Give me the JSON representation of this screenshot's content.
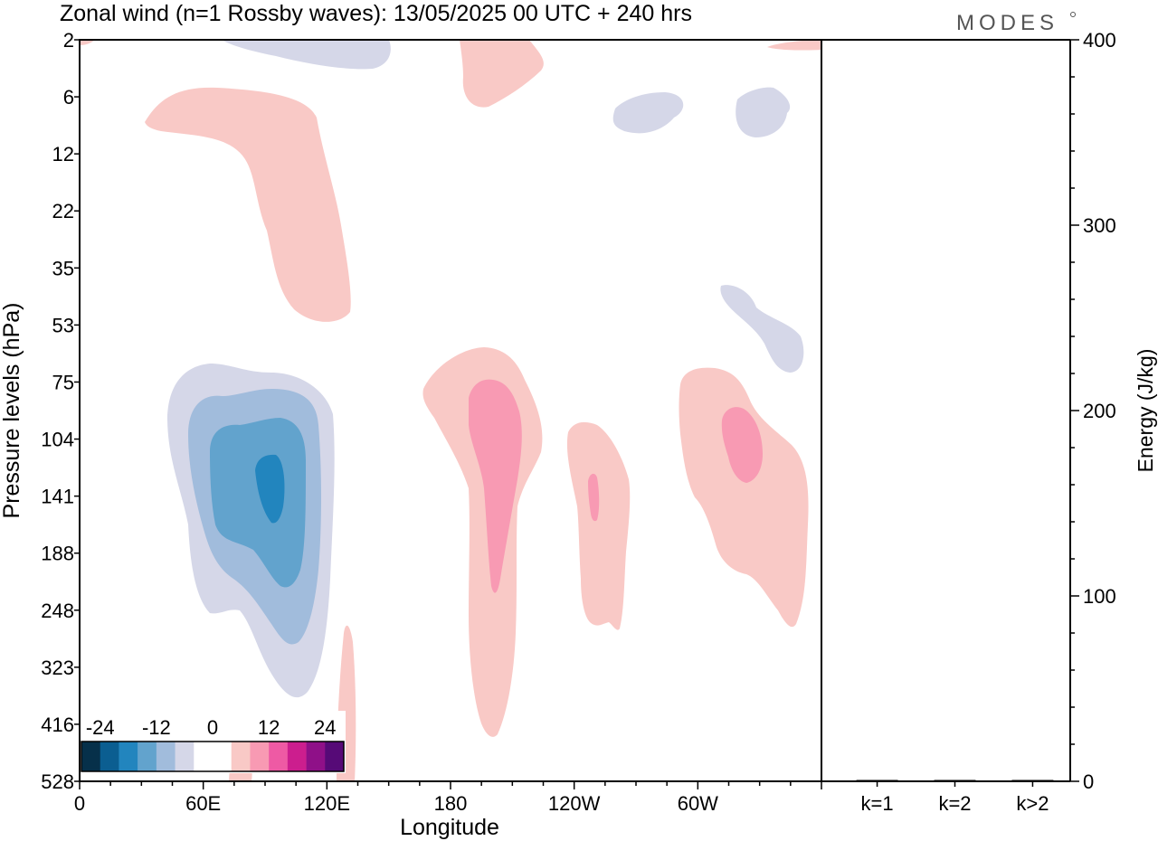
{
  "title": "Zonal wind (n=1 Rossby waves):  13/05/2025  00 UTC  + 240 hrs",
  "logo_text": "MODES",
  "chart_data": [
    {
      "type": "heatmap",
      "title": "Zonal wind (n=1 Rossby waves):  13/05/2025  00 UTC  + 240 hrs",
      "xlabel": "Longitude",
      "ylabel": "Pressure levels (hPa)",
      "x_ticks": [
        "0",
        "60E",
        "120E",
        "180",
        "120W",
        "60W"
      ],
      "x_tick_degrees": [
        0,
        60,
        120,
        180,
        240,
        300
      ],
      "xlim": [
        0,
        360
      ],
      "y_ticks": [
        "2",
        "6",
        "12",
        "22",
        "35",
        "53",
        "75",
        "104",
        "141",
        "188",
        "248",
        "323",
        "416",
        "528"
      ],
      "colorbar": {
        "tick_labels": [
          "-24",
          "-12",
          "0",
          "12",
          "24"
        ],
        "colors": [
          "#06304a",
          "#0b5e91",
          "#2285be",
          "#62a3cd",
          "#a1bcdc",
          "#d5d7e8",
          "#ffffff",
          "#ffffff",
          "#f9c9c6",
          "#f89ab3",
          "#ee5aa4",
          "#cc1e8e",
          "#8f1088",
          "#560a77"
        ]
      },
      "contours": [
        {
          "level": "negative",
          "color": "#d5d7e8",
          "region": "60E-120E, 75-416 hPa"
        },
        {
          "level": "negative",
          "color": "#a1bcdc",
          "region": "70E-115E, 85-323 hPa"
        },
        {
          "level": "negative",
          "color": "#62a3cd",
          "region": "80E-110E, 100-248 hPa"
        },
        {
          "level": "negative",
          "color": "#2285be",
          "region": "~90E, 115-175 hPa"
        },
        {
          "level": "positive",
          "color": "#f9c9c6",
          "region": "170E-160W, 70-416 hPa"
        },
        {
          "level": "positive",
          "color": "#f89ab3",
          "region": "~195E, 80-220 hPa"
        },
        {
          "level": "positive",
          "color": "#f9c9c6",
          "region": "125W-105W, 110-270 hPa"
        },
        {
          "level": "positive",
          "color": "#f9c9c6",
          "region": "75W-15W, 75-260 hPa"
        },
        {
          "level": "positive",
          "color": "#f89ab3",
          "region": "~45W, 105-150 hPa"
        },
        {
          "level": "positive",
          "color": "#f9c9c6",
          "region": "30E-130E, 5-53 hPa"
        },
        {
          "level": "negative",
          "color": "#d5d7e8",
          "region": "100W-50W, 2-12 hPa"
        }
      ]
    },
    {
      "type": "bar",
      "ylabel": "Energy (J/kg)",
      "categories": [
        "k=1",
        "k=2",
        "k>2"
      ],
      "values": [
        0.5,
        0.2,
        0.4
      ],
      "ylim": [
        0,
        400
      ],
      "y_ticks": [
        "0",
        "100",
        "200",
        "300",
        "400"
      ]
    }
  ]
}
